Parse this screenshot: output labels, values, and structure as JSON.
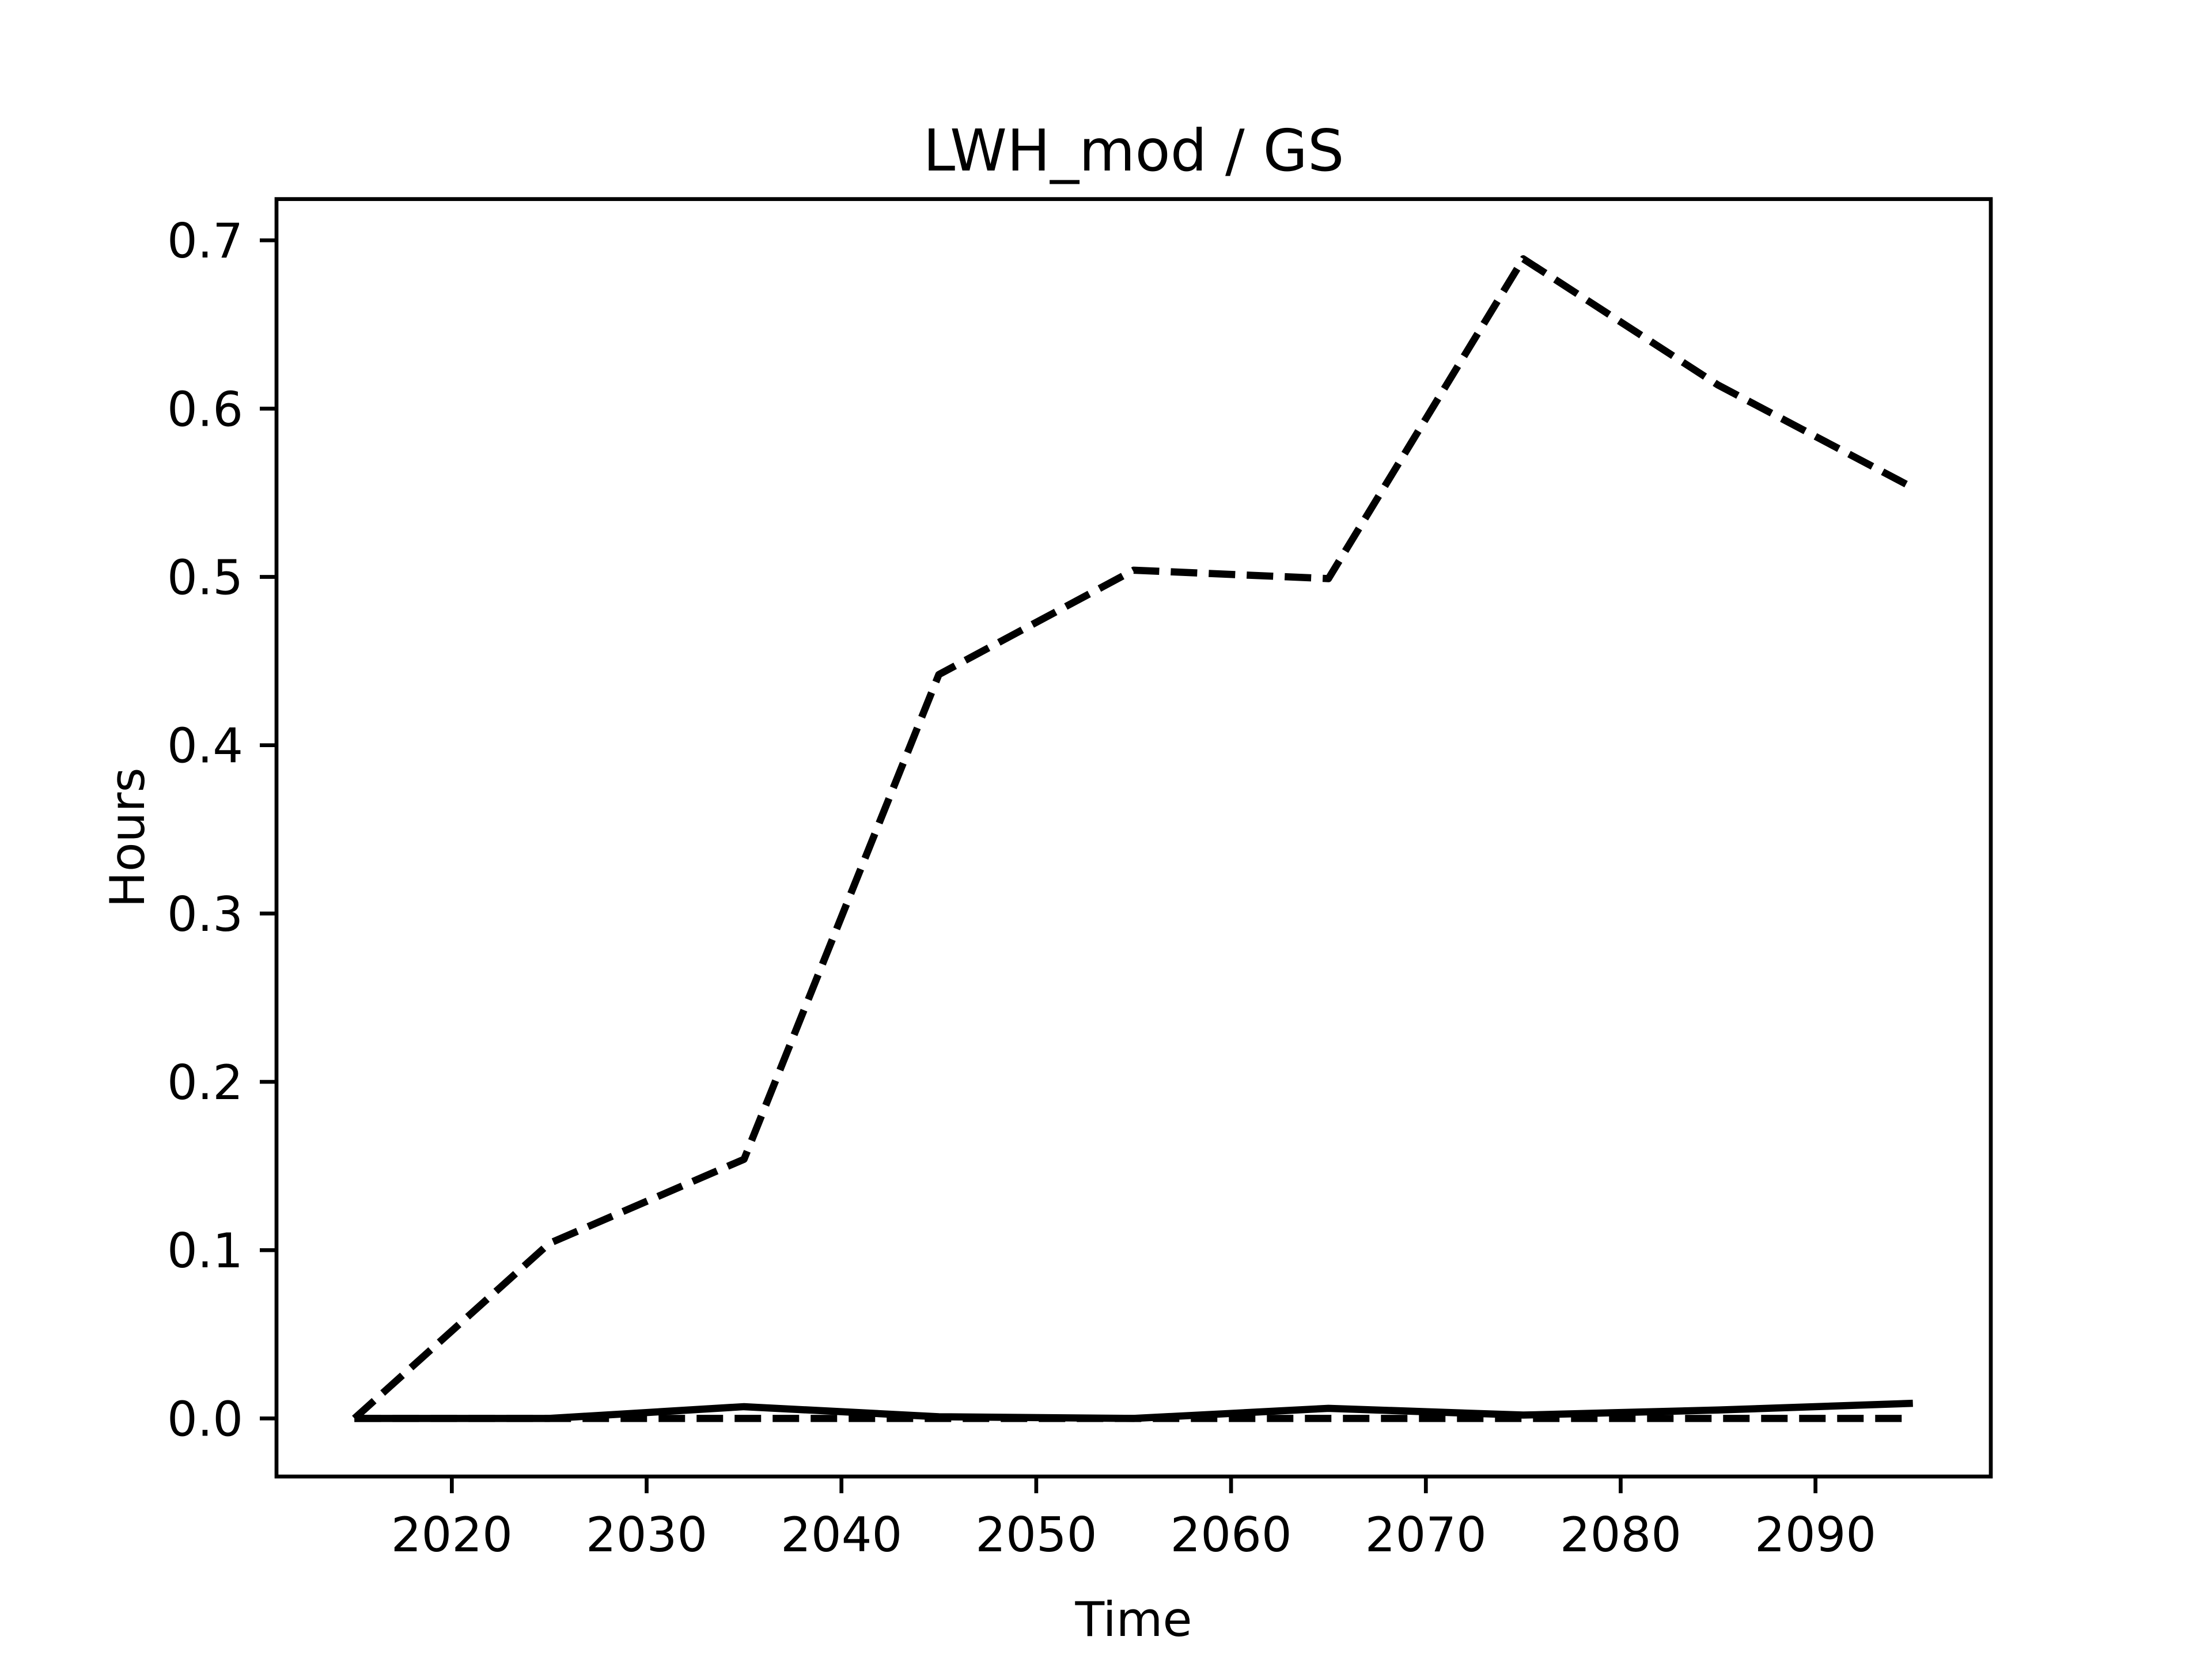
{
  "chart_data": {
    "type": "line",
    "title": "LWH_mod / GS",
    "xlabel": "Time",
    "ylabel": "Hours",
    "x": [
      2015,
      2025,
      2035,
      2045,
      2055,
      2065,
      2075,
      2085,
      2095
    ],
    "series": [
      {
        "color": "#000000",
        "linestyle": "dashed",
        "values": [
          0,
          0.104,
          0.154,
          0.442,
          0.504,
          0.499,
          0.689,
          0.614,
          0.553
        ]
      },
      {
        "color": "#000000",
        "linestyle": "solid",
        "values": [
          0,
          0,
          0.007,
          0.001,
          0,
          0.006,
          0.002,
          0.005,
          0.009
        ]
      },
      {
        "color": "#000000",
        "linestyle": "dashed",
        "values": [
          0,
          0,
          0,
          0,
          0,
          0,
          0,
          0,
          0
        ]
      }
    ],
    "xlim": [
      2011,
      2099
    ],
    "xticks": [
      2020,
      2030,
      2040,
      2050,
      2060,
      2070,
      2080,
      2090
    ],
    "ylim": [
      -0.0345,
      0.7245
    ],
    "yticks": [
      {
        "value": 0,
        "label": "0.0"
      },
      0.1,
      0.2,
      0.3,
      0.4,
      0.5,
      0.6,
      0.7
    ],
    "grid": false
  }
}
